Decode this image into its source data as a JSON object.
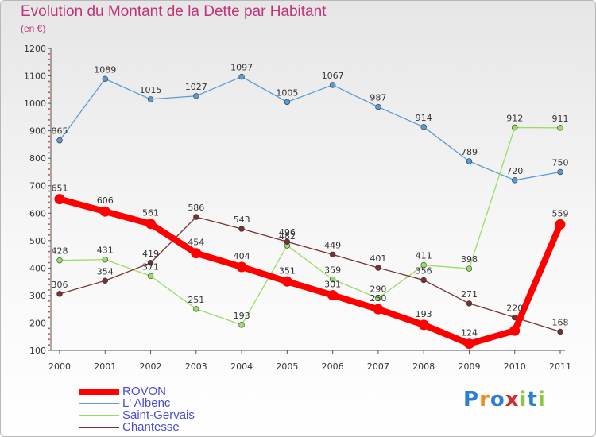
{
  "title": "Evolution du Montant de la Dette par Habitant",
  "subtitle": "(en €)",
  "logo": {
    "text": "Proxiti",
    "colors": [
      "#2a7fd4",
      "#f08a1c",
      "#2a7fd4",
      "#d42a2a",
      "#8dc63f",
      "#2a7fd4",
      "#8dc63f"
    ]
  },
  "chart_data": {
    "type": "line",
    "x": [
      "2000",
      "2001",
      "2002",
      "2003",
      "2004",
      "2005",
      "2006",
      "2007",
      "2008",
      "2009",
      "2010",
      "2011"
    ],
    "ylim": [
      100,
      1200
    ],
    "yticks": [
      100,
      200,
      300,
      400,
      500,
      600,
      700,
      800,
      900,
      1000,
      1100,
      1200
    ],
    "grid": false,
    "legend_position": "bottom-left",
    "series": [
      {
        "name": "ROVON",
        "color": "#ff0000",
        "values": [
          651,
          606,
          561,
          454,
          404,
          351,
          301,
          250,
          193,
          124,
          172,
          559
        ],
        "labels": [
          "651",
          "606",
          "561",
          "454",
          "404",
          "351",
          "301",
          "250",
          "193",
          "124",
          "",
          "559"
        ]
      },
      {
        "name": "L' Albenc",
        "color": "#5b9bd5",
        "values": [
          865,
          1089,
          1015,
          1027,
          1097,
          1005,
          1067,
          987,
          914,
          789,
          720,
          750
        ],
        "labels": [
          "865",
          "1089",
          "1015",
          "1027",
          "1097",
          "1005",
          "1067",
          "987",
          "914",
          "789",
          "720",
          "750"
        ]
      },
      {
        "name": "Saint-Gervais",
        "color": "#99dd66",
        "values": [
          428,
          431,
          371,
          251,
          193,
          482,
          359,
          290,
          411,
          398,
          912,
          911
        ],
        "labels": [
          "428",
          "431",
          "371",
          "251",
          "193",
          "482",
          "359",
          "290",
          "411",
          "398",
          "912",
          "911"
        ]
      },
      {
        "name": "Chantesse",
        "color": "#7a3030",
        "values": [
          306,
          354,
          419,
          586,
          543,
          496,
          449,
          401,
          356,
          271,
          220,
          168
        ],
        "labels": [
          "306",
          "354",
          "419",
          "586",
          "543",
          "496",
          "449",
          "401",
          "356",
          "271",
          "220",
          "168"
        ]
      }
    ]
  }
}
